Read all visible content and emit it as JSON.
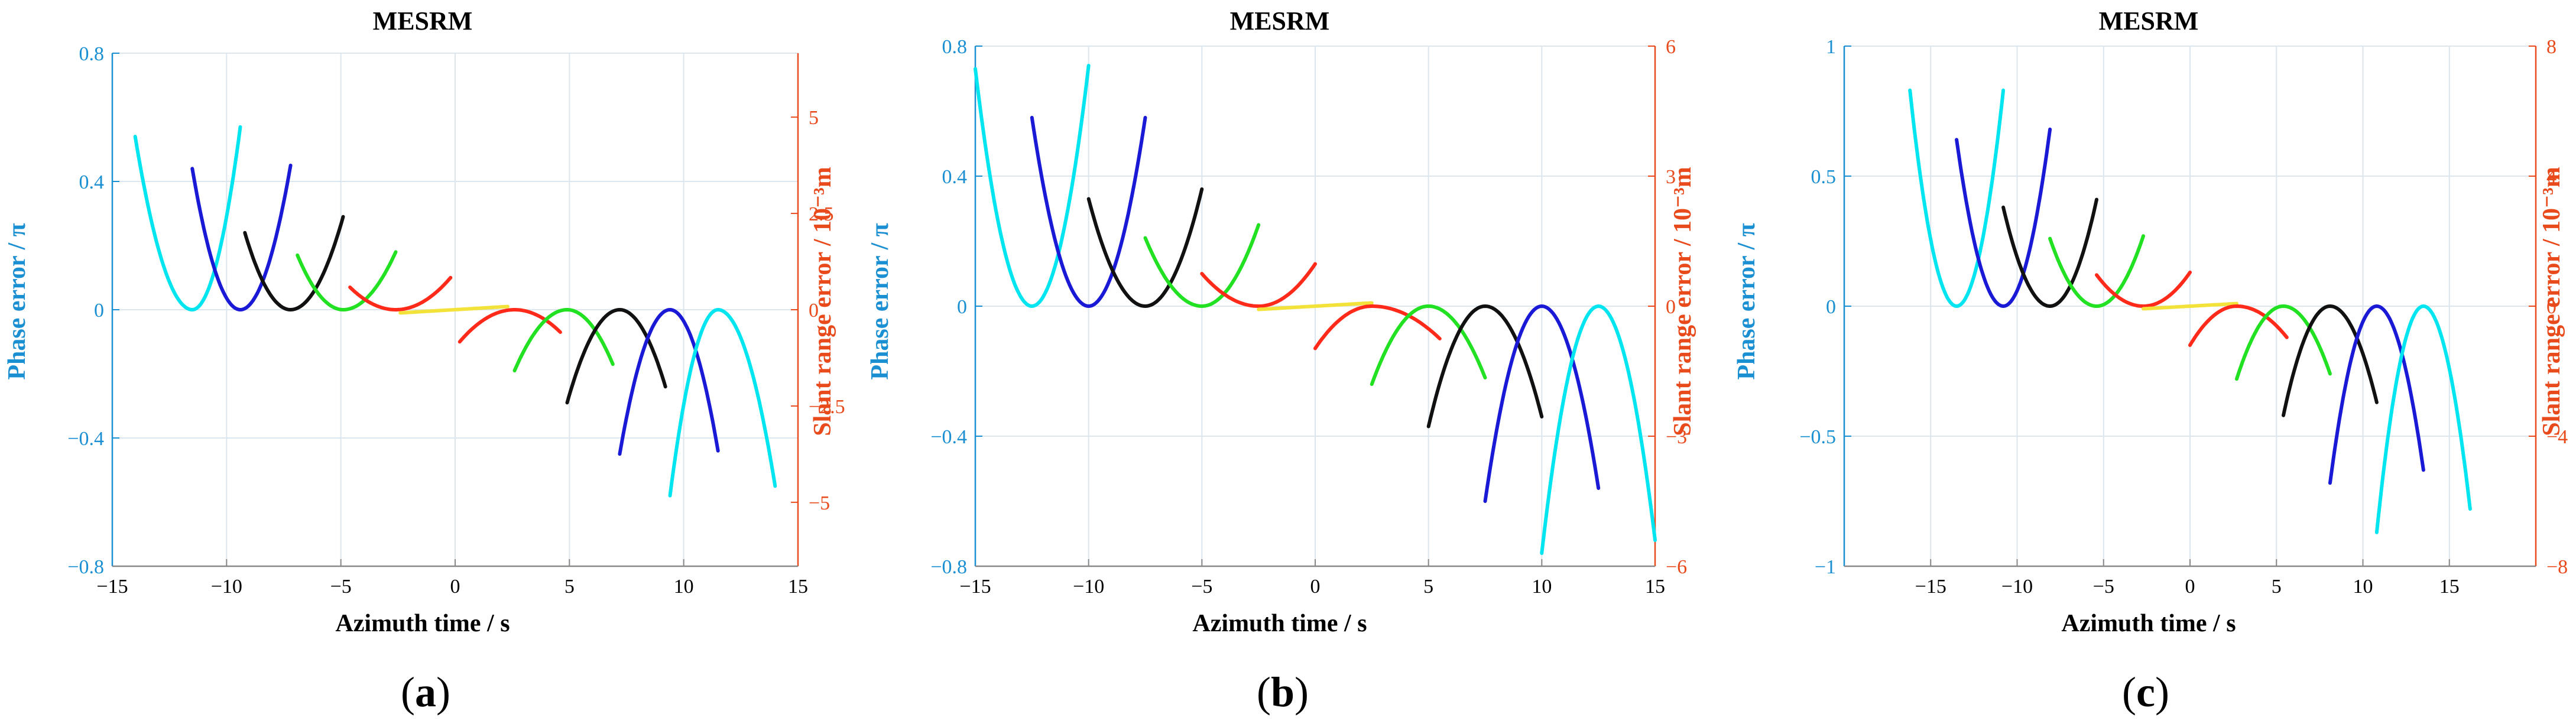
{
  "colors": {
    "left_axis": "#1a8fd1",
    "right_axis": "#e84a1c",
    "grid": "#dbe6ee",
    "axis": "#888888",
    "cyan": "#00e5ef",
    "blue": "#1a1ad6",
    "black": "#111111",
    "green": "#22e022",
    "red": "#ff2a1a",
    "yellow": "#f2e23a"
  },
  "chart_data": [
    {
      "type": "line",
      "panel_label": "a",
      "title": "MESRM",
      "xlabel": "Azimuth time / s",
      "ylabel": "Phase error / π",
      "ylabel_right": "Slant range error / 10⁻³m",
      "xlim": [
        -15,
        15
      ],
      "ylim": [
        -0.8,
        0.8
      ],
      "ylim_right": [
        -6.66,
        6.66
      ],
      "xticks": [
        -15,
        -10,
        -5,
        0,
        5,
        10,
        15
      ],
      "xtick_labels": [
        "−15",
        "−10",
        "−5",
        "0",
        "5",
        "10",
        "15"
      ],
      "yticks": [
        -0.8,
        -0.4,
        0,
        0.4,
        0.8
      ],
      "ytick_labels": [
        "−0.8",
        "−0.4",
        "0",
        "0.4",
        "0.8"
      ],
      "yticks_right": [
        -5,
        -2.5,
        0,
        2.5,
        5
      ],
      "ytick_labels_right": [
        "−5",
        "−2.5",
        "0",
        "2.5",
        "5"
      ],
      "grid": true,
      "series": [
        {
          "name": "cyan-left",
          "color": "cyan",
          "x0": -14,
          "x1": -9.4,
          "vertex": -11.5,
          "peak": 0.54,
          "end_y": 0.57,
          "dir": 1
        },
        {
          "name": "blue-left",
          "color": "blue",
          "x0": -11.5,
          "x1": -7.2,
          "vertex": -9.4,
          "peak": 0.44,
          "end_y": 0.45,
          "dir": 1
        },
        {
          "name": "black-left",
          "color": "black",
          "x0": -9.2,
          "x1": -4.9,
          "vertex": -7.2,
          "peak": 0.24,
          "end_y": 0.29,
          "dir": 1
        },
        {
          "name": "green-left",
          "color": "green",
          "x0": -6.9,
          "x1": -2.6,
          "vertex": -4.9,
          "peak": 0.17,
          "end_y": 0.18,
          "dir": 1
        },
        {
          "name": "red-left",
          "color": "red",
          "x0": -4.6,
          "x1": -0.2,
          "vertex": -2.6,
          "peak": 0.07,
          "end_y": 0.1,
          "dir": 1
        },
        {
          "name": "yellow",
          "color": "yellow",
          "x0": -2.4,
          "x1": 2.3,
          "vertex": null,
          "peak": -0.01,
          "end_y": 0.01,
          "dir": 0
        },
        {
          "name": "red-right",
          "color": "red",
          "x0": 0.2,
          "x1": 4.6,
          "vertex": 2.6,
          "peak": -0.1,
          "end_y": -0.07,
          "dir": -1
        },
        {
          "name": "green-right",
          "color": "green",
          "x0": 2.6,
          "x1": 6.9,
          "vertex": 4.9,
          "peak": -0.19,
          "end_y": -0.17,
          "dir": -1
        },
        {
          "name": "black-right",
          "color": "black",
          "x0": 4.9,
          "x1": 9.2,
          "vertex": 7.2,
          "peak": -0.29,
          "end_y": -0.24,
          "dir": -1
        },
        {
          "name": "blue-right",
          "color": "blue",
          "x0": 7.2,
          "x1": 11.5,
          "vertex": 9.4,
          "peak": -0.45,
          "end_y": -0.44,
          "dir": -1
        },
        {
          "name": "cyan-right",
          "color": "cyan",
          "x0": 9.4,
          "x1": 14,
          "vertex": 11.5,
          "peak": -0.58,
          "end_y": -0.55,
          "dir": -1
        }
      ]
    },
    {
      "type": "line",
      "panel_label": "b",
      "title": "MESRM",
      "xlabel": "Azimuth time / s",
      "ylabel": "Phase error / π",
      "ylabel_right": "Slant range error / 10⁻³m",
      "xlim": [
        -15,
        15
      ],
      "ylim": [
        -0.8,
        0.8
      ],
      "ylim_right": [
        -6,
        6
      ],
      "xticks": [
        -15,
        -10,
        -5,
        0,
        5,
        10,
        15
      ],
      "xtick_labels": [
        "−15",
        "−10",
        "−5",
        "0",
        "5",
        "10",
        "15"
      ],
      "yticks": [
        -0.8,
        -0.4,
        0,
        0.4,
        0.8
      ],
      "ytick_labels": [
        "−0.8",
        "−0.4",
        "0",
        "0.4",
        "0.8"
      ],
      "yticks_right": [
        -6,
        -3,
        0,
        3,
        6
      ],
      "ytick_labels_right": [
        "−6",
        "−3",
        "0",
        "3",
        "6"
      ],
      "grid": true,
      "series": [
        {
          "name": "cyan-left",
          "color": "cyan",
          "x0": -15,
          "x1": -10,
          "vertex": -12.5,
          "peak": 0.73,
          "end_y": 0.74,
          "dir": 1
        },
        {
          "name": "blue-left",
          "color": "blue",
          "x0": -12.5,
          "x1": -7.5,
          "vertex": -10,
          "peak": 0.58,
          "end_y": 0.58,
          "dir": 1
        },
        {
          "name": "black-left",
          "color": "black",
          "x0": -10,
          "x1": -5,
          "vertex": -7.5,
          "peak": 0.33,
          "end_y": 0.36,
          "dir": 1
        },
        {
          "name": "green-left",
          "color": "green",
          "x0": -7.5,
          "x1": -2.5,
          "vertex": -5,
          "peak": 0.21,
          "end_y": 0.25,
          "dir": 1
        },
        {
          "name": "red-left",
          "color": "red",
          "x0": -5,
          "x1": 0,
          "vertex": -2.5,
          "peak": 0.1,
          "end_y": 0.13,
          "dir": 1
        },
        {
          "name": "yellow",
          "color": "yellow",
          "x0": -2.5,
          "x1": 2.5,
          "vertex": null,
          "peak": -0.01,
          "end_y": 0.01,
          "dir": 0
        },
        {
          "name": "red-right",
          "color": "red",
          "x0": 0,
          "x1": 5.5,
          "vertex": 2.5,
          "peak": -0.13,
          "end_y": -0.1,
          "dir": -1
        },
        {
          "name": "green-right",
          "color": "green",
          "x0": 2.5,
          "x1": 7.5,
          "vertex": 5,
          "peak": -0.24,
          "end_y": -0.22,
          "dir": -1
        },
        {
          "name": "black-right",
          "color": "black",
          "x0": 5,
          "x1": 10,
          "vertex": 7.5,
          "peak": -0.37,
          "end_y": -0.34,
          "dir": -1
        },
        {
          "name": "blue-right",
          "color": "blue",
          "x0": 7.5,
          "x1": 12.5,
          "vertex": 10,
          "peak": -0.6,
          "end_y": -0.56,
          "dir": -1
        },
        {
          "name": "cyan-right",
          "color": "cyan",
          "x0": 10,
          "x1": 15,
          "vertex": 12.5,
          "peak": -0.76,
          "end_y": -0.72,
          "dir": -1
        }
      ]
    },
    {
      "type": "line",
      "panel_label": "c",
      "title": "MESRM",
      "xlabel": "Azimuth time / s",
      "ylabel": "Phase error / π",
      "ylabel_right": "Slant range error / 10⁻³m",
      "xlim": [
        -20,
        20
      ],
      "ylim": [
        -1,
        1
      ],
      "ylim_right": [
        -8,
        8
      ],
      "xticks": [
        -15,
        -10,
        -5,
        0,
        5,
        10,
        15
      ],
      "xtick_labels": [
        "−15",
        "−10",
        "−5",
        "0",
        "5",
        "10",
        "15"
      ],
      "yticks": [
        -1,
        -0.5,
        0,
        0.5,
        1
      ],
      "ytick_labels": [
        "−1",
        "−0.5",
        "0",
        "0.5",
        "1"
      ],
      "yticks_right": [
        -8,
        -4,
        0,
        4,
        8
      ],
      "ytick_labels_right": [
        "−8",
        "−4",
        "0",
        "4",
        "8"
      ],
      "grid": true,
      "series": [
        {
          "name": "cyan-left",
          "color": "cyan",
          "x0": -16.2,
          "x1": -10.8,
          "vertex": -13.5,
          "peak": 0.83,
          "end_y": 0.83,
          "dir": 1
        },
        {
          "name": "blue-left",
          "color": "blue",
          "x0": -13.5,
          "x1": -8.1,
          "vertex": -10.8,
          "peak": 0.64,
          "end_y": 0.68,
          "dir": 1
        },
        {
          "name": "black-left",
          "color": "black",
          "x0": -10.8,
          "x1": -5.4,
          "vertex": -8.1,
          "peak": 0.38,
          "end_y": 0.41,
          "dir": 1
        },
        {
          "name": "green-left",
          "color": "green",
          "x0": -8.1,
          "x1": -2.7,
          "vertex": -5.4,
          "peak": 0.26,
          "end_y": 0.27,
          "dir": 1
        },
        {
          "name": "red-left",
          "color": "red",
          "x0": -5.4,
          "x1": 0,
          "vertex": -2.7,
          "peak": 0.12,
          "end_y": 0.13,
          "dir": 1
        },
        {
          "name": "yellow",
          "color": "yellow",
          "x0": -2.7,
          "x1": 2.7,
          "vertex": null,
          "peak": -0.01,
          "end_y": 0.01,
          "dir": 0
        },
        {
          "name": "red-right",
          "color": "red",
          "x0": 0,
          "x1": 5.6,
          "vertex": 2.7,
          "peak": -0.15,
          "end_y": -0.12,
          "dir": -1
        },
        {
          "name": "green-right",
          "color": "green",
          "x0": 2.7,
          "x1": 8.1,
          "vertex": 5.4,
          "peak": -0.28,
          "end_y": -0.26,
          "dir": -1
        },
        {
          "name": "black-right",
          "color": "black",
          "x0": 5.4,
          "x1": 10.8,
          "vertex": 8.1,
          "peak": -0.42,
          "end_y": -0.37,
          "dir": -1
        },
        {
          "name": "blue-right",
          "color": "blue",
          "x0": 8.1,
          "x1": 13.5,
          "vertex": 10.8,
          "peak": -0.68,
          "end_y": -0.63,
          "dir": -1
        },
        {
          "name": "cyan-right",
          "color": "cyan",
          "x0": 10.8,
          "x1": 16.2,
          "vertex": 13.5,
          "peak": -0.87,
          "end_y": -0.78,
          "dir": -1
        }
      ]
    }
  ]
}
